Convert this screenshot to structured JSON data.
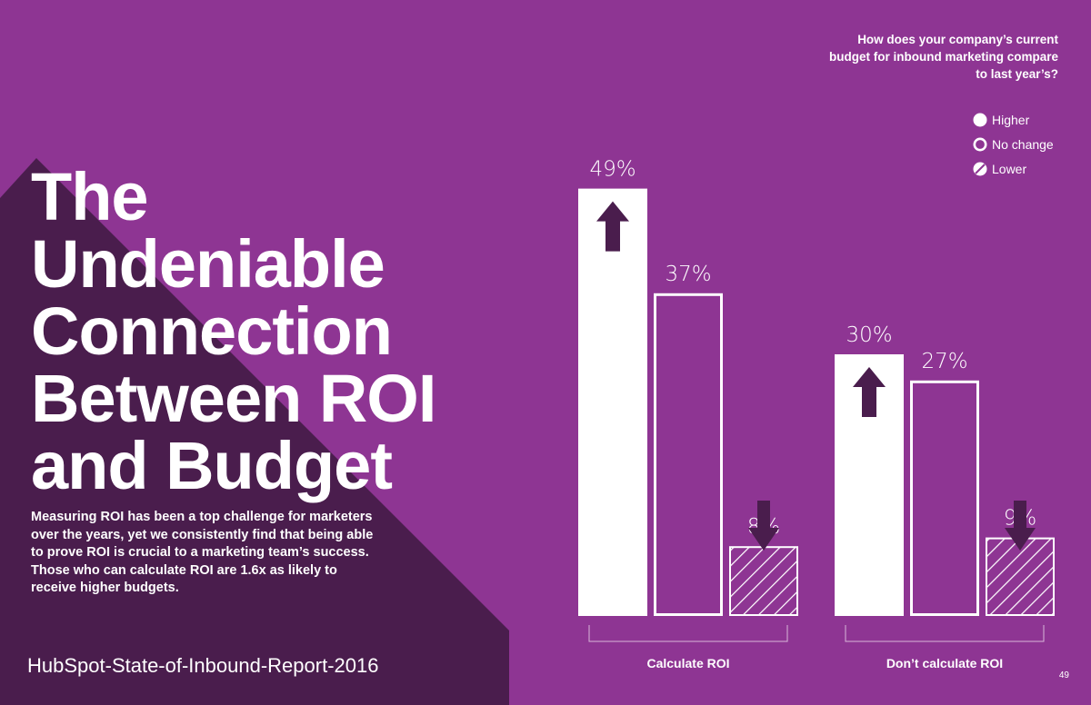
{
  "title_lines": [
    "The",
    "Undeniable",
    "Connection",
    "Between ROI",
    "and Budget"
  ],
  "body": "Measuring ROI has been a top challenge for marketers over the years, yet we consistently find that being able to prove ROI is crucial to a marketing team’s success. Those who can calculate ROI are 1.6x as likely to receive higher budgets.",
  "source": "HubSpot-State-of-Inbound-Report-2016",
  "question": "How does your company’s current budget for inbound marketing compare to last year’s?",
  "page_number": "49",
  "colors": {
    "background": "#8e3593",
    "shadow": "#4a1d4d",
    "white": "#ffffff",
    "arrow": "#4a1d4d"
  },
  "chart_data": {
    "type": "bar",
    "categories": [
      "Calculate ROI",
      "Don’t calculate ROI"
    ],
    "series": [
      {
        "name": "Higher",
        "values": [
          49,
          30
        ],
        "style": "solid"
      },
      {
        "name": "No change",
        "values": [
          37,
          27
        ],
        "style": "outline"
      },
      {
        "name": "Lower",
        "values": [
          8,
          9
        ],
        "style": "hatched"
      }
    ],
    "value_labels": [
      [
        "49%",
        "37%",
        "8%"
      ],
      [
        "30%",
        "27%",
        "9%"
      ]
    ],
    "icons": {
      "higher": "up-arrow-icon",
      "lower": "down-arrow-icon"
    },
    "legend_position": "top-right",
    "grid": false
  }
}
